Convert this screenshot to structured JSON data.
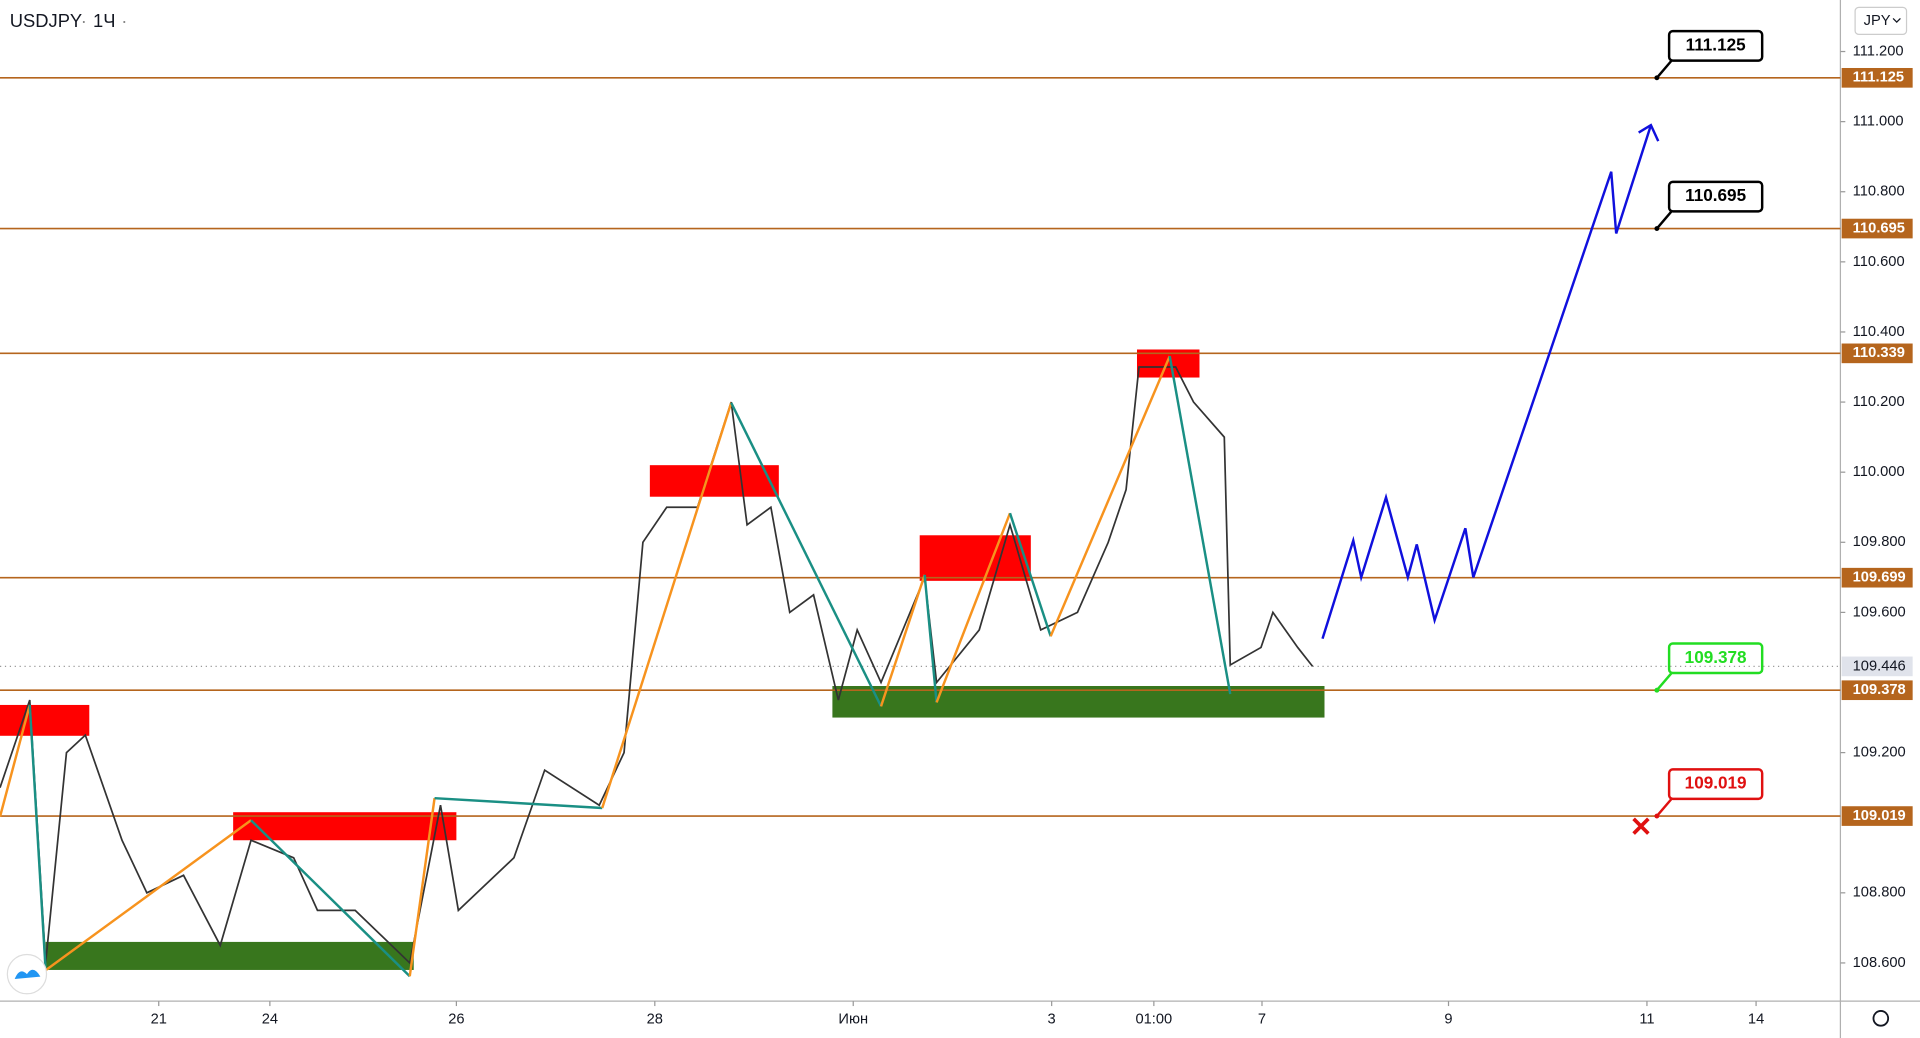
{
  "chart_data": {
    "type": "line",
    "symbol": "USDJPY",
    "interval": "1Ч",
    "currency": "JPY",
    "xlim": [
      -1.6,
      16.95
    ],
    "ylim": [
      108.491,
      111.347
    ],
    "xticks": [
      {
        "value": 0,
        "label": "21"
      },
      {
        "value": 1.12,
        "label": "24"
      },
      {
        "value": 3,
        "label": "26"
      },
      {
        "value": 5,
        "label": "28"
      },
      {
        "value": 7,
        "label": "Июн"
      },
      {
        "value": 9,
        "label": "3"
      },
      {
        "value": 10.03,
        "label": "01:00"
      },
      {
        "value": 11.12,
        "label": "7"
      },
      {
        "value": 13,
        "label": "9"
      },
      {
        "value": 15,
        "label": "11"
      },
      {
        "value": 16.1,
        "label": "14"
      }
    ],
    "yticks": [
      {
        "value": 108.6,
        "label": "108.600"
      },
      {
        "value": 108.8,
        "label": "108.800"
      },
      {
        "value": 109.2,
        "label": "109.200"
      },
      {
        "value": 109.6,
        "label": "109.600"
      },
      {
        "value": 109.8,
        "label": "109.800"
      },
      {
        "value": 110.0,
        "label": "110.000"
      },
      {
        "value": 110.2,
        "label": "110.200"
      },
      {
        "value": 110.4,
        "label": "110.400"
      },
      {
        "value": 110.6,
        "label": "110.600"
      },
      {
        "value": 110.8,
        "label": "110.800"
      },
      {
        "value": 111.0,
        "label": "111.000"
      },
      {
        "value": 111.2,
        "label": "111.200"
      }
    ],
    "series": [
      {
        "name": "USDJPY",
        "color": "#333333",
        "x": [
          -1.6,
          -1.3,
          -1.14,
          -0.93,
          -0.74,
          -0.37,
          -0.12,
          0.25,
          0.62,
          0.93,
          1.36,
          1.6,
          1.98,
          2.53,
          2.84,
          3.02,
          3.58,
          3.89,
          4.44,
          4.69,
          4.88,
          5.12,
          5.43,
          5.77,
          5.93,
          6.17,
          6.36,
          6.6,
          6.85,
          7.04,
          7.28,
          7.72,
          7.84,
          8.27,
          8.58,
          8.89,
          9.26,
          9.57,
          9.75,
          9.88,
          10.25,
          10.43,
          10.74,
          10.8,
          11.11,
          11.23,
          11.48,
          11.63
        ],
        "values": [
          109.1,
          109.35,
          108.6,
          109.2,
          109.25,
          108.95,
          108.8,
          108.85,
          108.65,
          108.95,
          108.9,
          108.75,
          108.75,
          108.6,
          109.05,
          108.75,
          108.9,
          109.15,
          109.05,
          109.2,
          109.8,
          109.9,
          109.9,
          110.2,
          109.85,
          109.9,
          109.6,
          109.65,
          109.35,
          109.55,
          109.4,
          109.7,
          109.4,
          109.55,
          109.85,
          109.55,
          109.6,
          109.8,
          109.95,
          110.3,
          110.3,
          110.2,
          110.1,
          109.45,
          109.5,
          109.6,
          109.5,
          109.446
        ]
      }
    ],
    "swings": {
      "up_color": "#f7931e",
      "down_color": "#1a8f84",
      "x": [
        -1.6,
        -1.3,
        -1.14,
        0.93,
        2.53,
        2.78,
        4.47,
        5.77,
        7.28,
        7.72,
        7.84,
        8.58,
        8.99,
        10.19,
        10.8
      ],
      "values": [
        109.017,
        109.336,
        108.579,
        109.007,
        108.562,
        109.07,
        109.042,
        110.198,
        109.332,
        109.707,
        109.343,
        109.883,
        109.532,
        110.331,
        109.367
      ]
    },
    "forecast": {
      "color": "#1010dd",
      "x": [
        11.73,
        12.04,
        12.12,
        12.37,
        12.59,
        12.68,
        12.86,
        13.17,
        13.25,
        14.64,
        14.69,
        15.04
      ],
      "values": [
        109.525,
        109.805,
        109.7,
        109.928,
        109.7,
        109.794,
        109.578,
        109.84,
        109.7,
        110.857,
        110.681,
        110.99
      ]
    },
    "zones": [
      {
        "color": "#ff0000",
        "x": [
          -1.6,
          -0.7
        ],
        "y": [
          109.248,
          109.336
        ]
      },
      {
        "color": "#ff0000",
        "x": [
          0.75,
          3.0
        ],
        "y": [
          108.95,
          109.03
        ]
      },
      {
        "color": "#ff0000",
        "x": [
          4.95,
          6.25
        ],
        "y": [
          109.93,
          110.02
        ]
      },
      {
        "color": "#ff0000",
        "x": [
          7.67,
          8.79
        ],
        "y": [
          109.69,
          109.82
        ]
      },
      {
        "color": "#ff0000",
        "x": [
          9.86,
          10.49
        ],
        "y": [
          110.27,
          110.35
        ]
      },
      {
        "color": "#38761d",
        "x": [
          -1.14,
          2.57
        ],
        "y": [
          108.58,
          108.66
        ]
      },
      {
        "color": "#38761d",
        "x": [
          6.79,
          11.75
        ],
        "y": [
          109.3,
          109.39
        ]
      }
    ],
    "levels": [
      {
        "value": 111.125,
        "callout_color": "#000000"
      },
      {
        "value": 110.695,
        "callout_color": "#000000"
      },
      {
        "value": 110.339
      },
      {
        "value": 109.699
      },
      {
        "value": 109.378,
        "callout_color": "#22dd22"
      },
      {
        "value": 109.019,
        "callout_color": "#e01010"
      }
    ],
    "level_color": "#b5651d",
    "callout_x": 15.1,
    "last_price": 109.446,
    "stop_marker": {
      "x": 14.94,
      "y": 108.99,
      "color": "#e01010"
    }
  }
}
